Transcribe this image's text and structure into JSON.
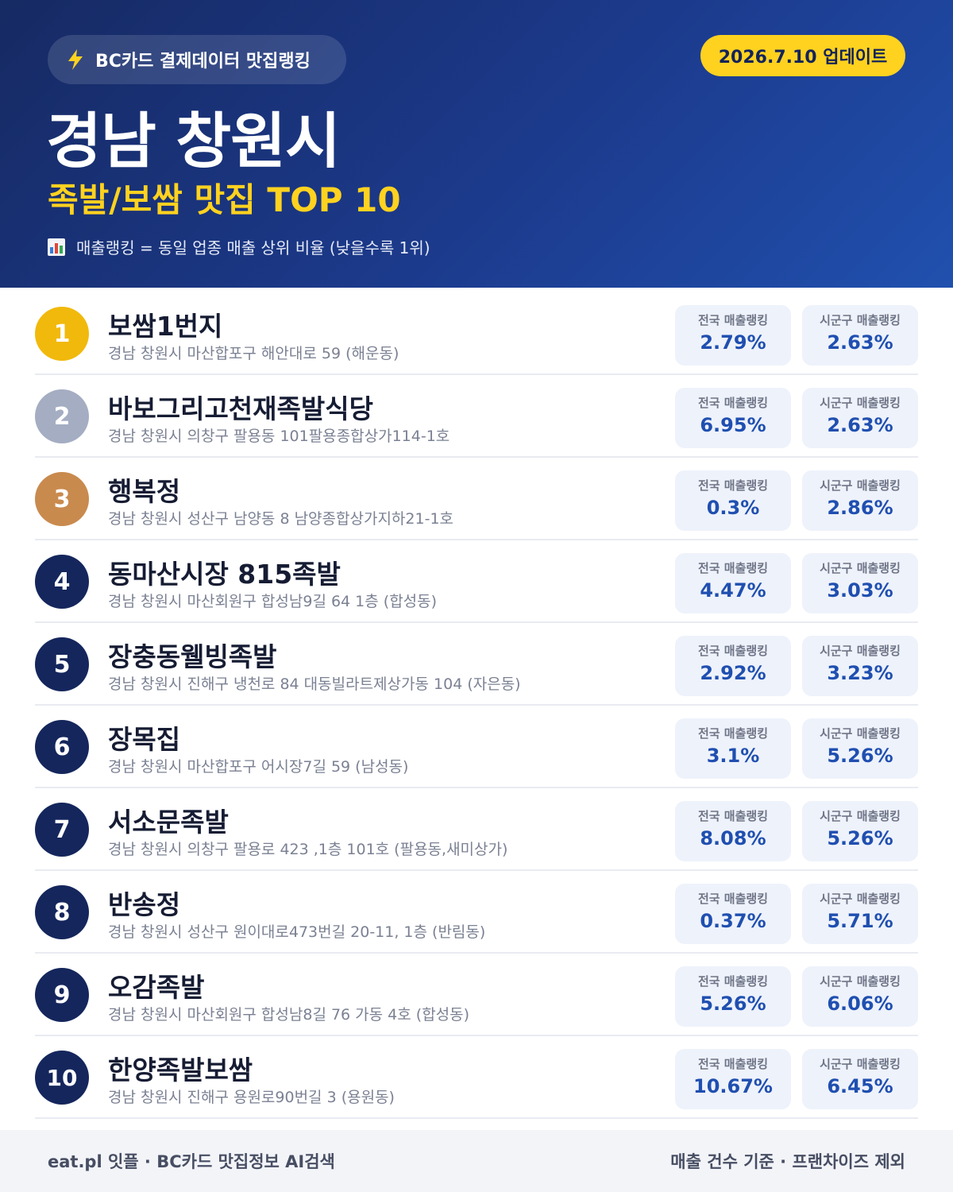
{
  "header": {
    "brand": "BC카드 결제데이터 맛집랭킹",
    "update": "2026.7.10 업데이트",
    "title": "경남 창원시",
    "subtitle": "족발/보쌈 맛집 TOP 10",
    "note": "매출랭킹 = 동일 업종 매출 상위 비율 (낮을수록 1위)",
    "brand_icon": "lightning-icon",
    "note_icon": "bar-chart-icon"
  },
  "labels": {
    "national": "전국 매출랭킹",
    "local": "시군구 매출랭킹"
  },
  "colors": {
    "header_dark": "#162a63",
    "accent_yellow": "#ffd21f",
    "rank_navy": "#14265c",
    "gold": "#f1b90b",
    "silver": "#a4adc2",
    "bronze": "#c98a4e",
    "value_blue": "#1f4fb0"
  },
  "restaurants": [
    {
      "rank": "1",
      "name": "보쌈1번지",
      "address": "경남 창원시 마산합포구 해안대로 59 (해운동)",
      "national": "2.79%",
      "local": "2.63%"
    },
    {
      "rank": "2",
      "name": "바보그리고천재족발식당",
      "address": "경남 창원시 의창구 팔용동 101팔용종합상가114-1호",
      "national": "6.95%",
      "local": "2.63%"
    },
    {
      "rank": "3",
      "name": "행복정",
      "address": "경남 창원시 성산구 남양동 8 남양종합상가지하21-1호",
      "national": "0.3%",
      "local": "2.86%"
    },
    {
      "rank": "4",
      "name": "동마산시장 815족발",
      "address": "경남 창원시 마산회원구 합성남9길 64 1층 (합성동)",
      "national": "4.47%",
      "local": "3.03%"
    },
    {
      "rank": "5",
      "name": "장충동웰빙족발",
      "address": "경남 창원시 진해구 냉천로 84 대동빌라트제상가동 104 (자은동)",
      "national": "2.92%",
      "local": "3.23%"
    },
    {
      "rank": "6",
      "name": "장목집",
      "address": "경남 창원시 마산합포구 어시장7길 59 (남성동)",
      "national": "3.1%",
      "local": "5.26%"
    },
    {
      "rank": "7",
      "name": "서소문족발",
      "address": "경남 창원시 의창구 팔용로 423 ,1층 101호 (팔용동,새미상가)",
      "national": "8.08%",
      "local": "5.26%"
    },
    {
      "rank": "8",
      "name": "반송정",
      "address": "경남 창원시 성산구 원이대로473번길 20-11, 1층 (반림동)",
      "national": "0.37%",
      "local": "5.71%"
    },
    {
      "rank": "9",
      "name": "오감족발",
      "address": "경남 창원시 마산회원구 합성남8길 76 가동 4호 (합성동)",
      "national": "5.26%",
      "local": "6.06%"
    },
    {
      "rank": "10",
      "name": "한양족발보쌈",
      "address": "경남 창원시 진해구 용원로90번길 3 (용원동)",
      "national": "10.67%",
      "local": "6.45%"
    }
  ],
  "footer": {
    "left": "eat.pl 잇플 · BC카드 맛집정보 AI검색",
    "right": "매출 건수 기준 · 프랜차이즈 제외"
  }
}
